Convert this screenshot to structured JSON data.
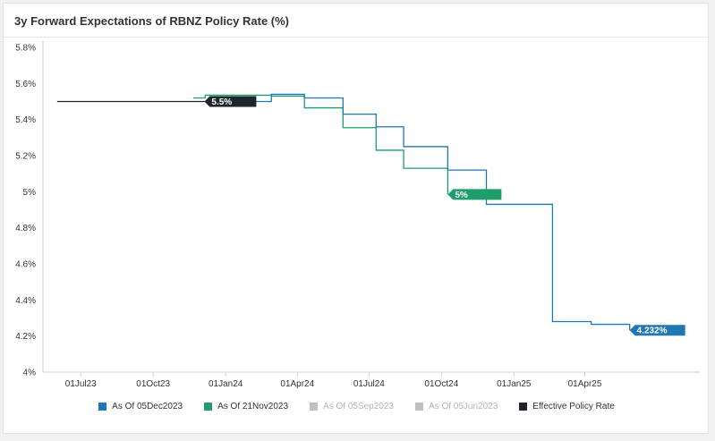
{
  "chart_data": {
    "type": "line",
    "title": "3y Forward Expectations of RBNZ Policy Rate (%)",
    "xlabel": "",
    "ylabel": "",
    "ylim": [
      4.0,
      5.8
    ],
    "yticks": [
      4.0,
      4.2,
      4.4,
      4.6,
      4.8,
      5.0,
      5.2,
      5.4,
      5.6,
      5.8
    ],
    "ytick_labels": [
      "4%",
      "4.2%",
      "4.4%",
      "4.6%",
      "4.8%",
      "5%",
      "5.2%",
      "5.4%",
      "5.6%",
      "5.8%"
    ],
    "xlim": [
      "2023-05-14",
      "2025-08-25"
    ],
    "xticks": [
      "2023-07-01",
      "2023-10-01",
      "2024-01-01",
      "2024-04-01",
      "2024-07-01",
      "2024-10-01",
      "2025-01-01",
      "2025-04-01"
    ],
    "xtick_labels": [
      "01Jul23",
      "01Oct23",
      "01Jan24",
      "01Apr24",
      "01Jul24",
      "01Oct24",
      "01Jan25",
      "01Apr25"
    ],
    "grid": false,
    "legend_position": "bottom",
    "series": [
      {
        "name": "As Of 05Dec2023",
        "color": "#1f77b4",
        "active": true,
        "step": true,
        "x": [
          "2023-12-05",
          "2024-02-28",
          "2024-04-10",
          "2024-05-29",
          "2024-07-10",
          "2024-08-14",
          "2024-10-09",
          "2024-11-27",
          "2025-02-19",
          "2025-04-09",
          "2025-05-28"
        ],
        "y": [
          5.5,
          5.54,
          5.52,
          5.43,
          5.36,
          5.25,
          5.12,
          4.93,
          4.28,
          4.265,
          4.232
        ],
        "end_label": "4.232%"
      },
      {
        "name": "As Of 21Nov2023",
        "color": "#1e9e6a",
        "active": true,
        "step": true,
        "x": [
          "2023-11-21",
          "2023-12-06",
          "2024-02-28",
          "2024-04-10",
          "2024-05-29",
          "2024-07-10",
          "2024-08-14",
          "2024-10-09"
        ],
        "y": [
          5.52,
          5.535,
          5.53,
          5.465,
          5.355,
          5.23,
          5.13,
          4.985
        ],
        "end_label": "5%"
      },
      {
        "name": "As Of 05Sep2023",
        "color": "#c0c0c0",
        "active": false,
        "x": [],
        "y": []
      },
      {
        "name": "As Of 05Jun2023",
        "color": "#c0c0c0",
        "active": false,
        "x": [],
        "y": []
      },
      {
        "name": "Effective Policy Rate",
        "color": "#1f252b",
        "active": true,
        "step": true,
        "x": [
          "2023-06-01",
          "2023-12-05"
        ],
        "y": [
          5.5,
          5.5
        ],
        "end_label": "5.5%"
      }
    ]
  }
}
